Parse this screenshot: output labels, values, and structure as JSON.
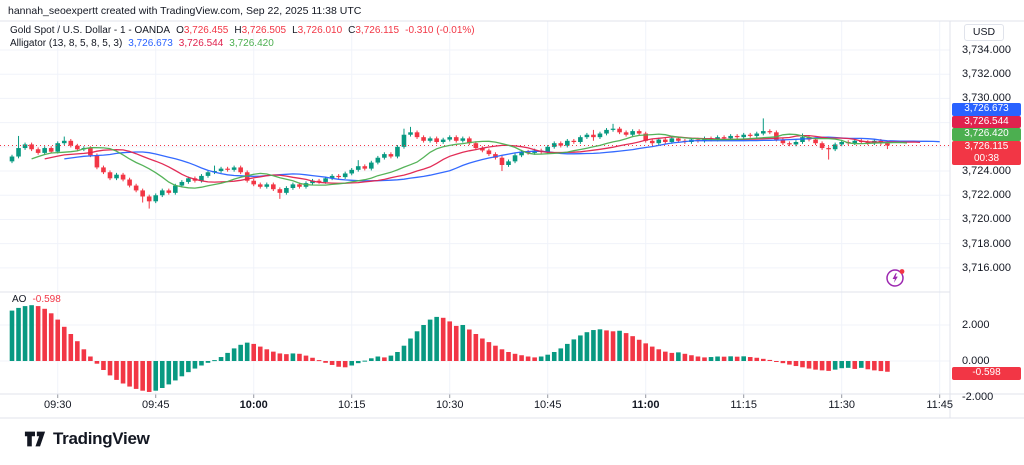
{
  "header": {
    "attribution": "hannah_seoexpertt created with TradingView.com, Sep 22, 2025 11:38 UTC"
  },
  "legend": {
    "symbol": {
      "title": "Gold Spot / U.S. Dollar - 1 - OANDA",
      "ohlc": [
        {
          "k": "O",
          "v": "3,726.455"
        },
        {
          "k": "H",
          "v": "3,726.505"
        },
        {
          "k": "L",
          "v": "3,726.010"
        },
        {
          "k": "C",
          "v": "3,726.115"
        }
      ],
      "change": "-0.310 (-0.01%)"
    },
    "alligator": {
      "title": "Alligator (13, 8, 5, 8, 5, 3)",
      "values": [
        {
          "v": "3,726.673",
          "color": "#2962ff"
        },
        {
          "v": "3,726.544",
          "color": "#e0224e"
        },
        {
          "v": "3,726.420",
          "color": "#4caf50"
        }
      ]
    }
  },
  "ao_label": {
    "name": "AO",
    "value": "-0.598"
  },
  "price_axis": {
    "currency": "USD",
    "ticks": [
      {
        "label": "3,734.000",
        "value": 3734
      },
      {
        "label": "3,732.000",
        "value": 3732
      },
      {
        "label": "3,730.000",
        "value": 3730
      },
      {
        "label": "3,724.000",
        "value": 3724
      },
      {
        "label": "3,722.000",
        "value": 3722
      },
      {
        "label": "3,720.000",
        "value": 3720
      },
      {
        "label": "3,718.000",
        "value": 3718
      },
      {
        "label": "3,716.000",
        "value": 3716
      }
    ],
    "badges": [
      {
        "text": "3,726.673",
        "color": "#2962ff"
      },
      {
        "text": "3,726.544",
        "color": "#e0224e"
      },
      {
        "text": "3,726.420",
        "color": "#4caf50"
      },
      {
        "text": "3,726.115",
        "sub": "00:38",
        "color": "#f23645"
      }
    ],
    "ao_ticks": [
      {
        "label": "2.000",
        "value": 2
      },
      {
        "label": "0.000",
        "value": 0
      },
      {
        "label": "-2.000",
        "value": -2
      }
    ],
    "ao_badge": {
      "text": "-0.598",
      "color": "#f23645"
    }
  },
  "time_axis": {
    "labels": [
      {
        "text": "09:30",
        "i": 7,
        "bold": false
      },
      {
        "text": "09:45",
        "i": 22,
        "bold": false
      },
      {
        "text": "10:00",
        "i": 37,
        "bold": true
      },
      {
        "text": "10:15",
        "i": 52,
        "bold": false
      },
      {
        "text": "10:30",
        "i": 67,
        "bold": false
      },
      {
        "text": "10:45",
        "i": 82,
        "bold": false
      },
      {
        "text": "11:00",
        "i": 97,
        "bold": true
      },
      {
        "text": "11:15",
        "i": 112,
        "bold": false
      },
      {
        "text": "11:30",
        "i": 127,
        "bold": false
      },
      {
        "text": "11:45",
        "i": 142,
        "bold": false
      }
    ]
  },
  "footer": {
    "logo_text": "TradingView"
  },
  "colors": {
    "up": "#089981",
    "down": "#f23645",
    "grid": "#f0f3fa",
    "border": "#e0e3eb",
    "text": "#131722",
    "tickmark": "#9598a1",
    "boost_purple": "#9c27b0"
  },
  "chart_data": {
    "type": "candlestick+histogram",
    "title": "Gold Spot / U.S. Dollar, 1 minute, OANDA",
    "start_time": "09:23",
    "interval_minutes": 1,
    "legend_position": "top-left",
    "grid": true,
    "price_pane": {
      "type": "candlestick",
      "ylim": [
        3714.5,
        3734.6
      ],
      "grid_values": [
        3734,
        3732,
        3730,
        3728,
        3726,
        3724,
        3722,
        3720,
        3718,
        3716
      ],
      "ticks_note": "labels 3,728/3,726 hidden behind value badges",
      "open_first": 3724.8,
      "price_line": 3726.115,
      "closes": [
        3725.2,
        3725.9,
        3726.2,
        3725.8,
        3725.5,
        3725.9,
        3725.6,
        3726.3,
        3726.5,
        3726.1,
        3725.8,
        3725.9,
        3725.3,
        3724.3,
        3723.9,
        3723.4,
        3723.7,
        3723.3,
        3722.8,
        3722.4,
        3721.9,
        3721.5,
        3722.0,
        3722.4,
        3722.2,
        3722.8,
        3723.1,
        3723.4,
        3723.2,
        3723.6,
        3723.9,
        3724.0,
        3724.2,
        3724.1,
        3724.3,
        3723.9,
        3723.2,
        3722.9,
        3722.7,
        3722.9,
        3722.5,
        3722.2,
        3722.6,
        3722.9,
        3722.7,
        3723.0,
        3723.2,
        3723.1,
        3723.4,
        3723.6,
        3723.5,
        3723.8,
        3724.1,
        3724.4,
        3724.2,
        3724.7,
        3725.1,
        3725.4,
        3725.2,
        3726.0,
        3727.0,
        3727.2,
        3726.8,
        3726.5,
        3726.7,
        3726.4,
        3726.6,
        3726.8,
        3726.5,
        3726.7,
        3726.3,
        3725.9,
        3725.7,
        3725.4,
        3725.1,
        3724.5,
        3724.8,
        3725.3,
        3725.6,
        3725.5,
        3725.7,
        3725.6,
        3726.0,
        3726.3,
        3726.1,
        3726.5,
        3726.4,
        3726.8,
        3727.0,
        3726.8,
        3727.1,
        3727.4,
        3727.5,
        3727.2,
        3727.0,
        3727.3,
        3727.1,
        3726.5,
        3726.3,
        3726.6,
        3726.4,
        3726.7,
        3726.5,
        3726.4,
        3726.6,
        3726.5,
        3726.7,
        3726.6,
        3726.8,
        3726.7,
        3726.9,
        3726.8,
        3727.0,
        3726.9,
        3727.1,
        3727.3,
        3727.2,
        3726.6,
        3726.3,
        3726.2,
        3726.4,
        3726.8,
        3726.6,
        3726.3,
        3725.9,
        3725.8,
        3726.2,
        3726.4,
        3726.3,
        3726.5,
        3726.4,
        3726.3,
        3726.5,
        3726.3,
        3726.115
      ],
      "wick_hi": {
        "1": 1.0,
        "8": 0.35,
        "31": 0.45,
        "53": 0.5,
        "60": 0.5,
        "61": 0.45,
        "89": 0.4,
        "92": 0.4,
        "115": 1.05,
        "121": 0.3
      },
      "wick_lo": {
        "20": 0.5,
        "21": 0.6,
        "41": 0.5,
        "75": 0.5,
        "89": 0.3,
        "125": 0.85,
        "134": 0.3
      }
    },
    "alligator": {
      "jaw": {
        "period": 13,
        "offset": 8,
        "color": "#2962ff",
        "value": 3726.673
      },
      "teeth": {
        "period": 8,
        "offset": 5,
        "color": "#e0224e",
        "value": 3726.544
      },
      "lips": {
        "period": 5,
        "offset": 3,
        "color": "#4caf50",
        "value": 3726.42
      }
    },
    "ao_pane": {
      "type": "bar",
      "name": "AO",
      "last_value": -0.598,
      "ylim": [
        -2.2,
        3.6
      ],
      "grid_values": [
        2,
        0
      ],
      "color_rule": "green if value >= previous else red",
      "values": [
        2.8,
        2.95,
        3.05,
        3.1,
        3.05,
        2.9,
        2.65,
        2.3,
        1.9,
        1.5,
        1.1,
        0.65,
        0.25,
        -0.15,
        -0.5,
        -0.8,
        -1.05,
        -1.25,
        -1.42,
        -1.55,
        -1.65,
        -1.72,
        -1.65,
        -1.5,
        -1.3,
        -1.08,
        -0.85,
        -0.62,
        -0.42,
        -0.25,
        -0.1,
        0.05,
        0.22,
        0.45,
        0.7,
        0.9,
        1.02,
        0.95,
        0.8,
        0.65,
        0.52,
        0.42,
        0.38,
        0.42,
        0.4,
        0.3,
        0.18,
        0.05,
        -0.1,
        -0.22,
        -0.32,
        -0.35,
        -0.25,
        -0.12,
        0.02,
        0.15,
        0.25,
        0.2,
        0.3,
        0.5,
        0.85,
        1.25,
        1.65,
        2.0,
        2.3,
        2.45,
        2.4,
        2.2,
        1.95,
        2.0,
        1.75,
        1.5,
        1.25,
        1.05,
        0.85,
        0.65,
        0.5,
        0.4,
        0.32,
        0.25,
        0.2,
        0.25,
        0.35,
        0.5,
        0.7,
        0.95,
        1.2,
        1.42,
        1.6,
        1.72,
        1.76,
        1.7,
        1.65,
        1.68,
        1.55,
        1.38,
        1.18,
        0.98,
        0.8,
        0.65,
        0.52,
        0.45,
        0.48,
        0.4,
        0.32,
        0.25,
        0.2,
        0.22,
        0.25,
        0.24,
        0.26,
        0.24,
        0.26,
        0.22,
        0.18,
        0.12,
        0.06,
        -0.04,
        -0.12,
        -0.2,
        -0.28,
        -0.35,
        -0.42,
        -0.48,
        -0.52,
        -0.55,
        -0.48,
        -0.4,
        -0.38,
        -0.44,
        -0.38,
        -0.46,
        -0.52,
        -0.56,
        -0.598
      ]
    }
  }
}
